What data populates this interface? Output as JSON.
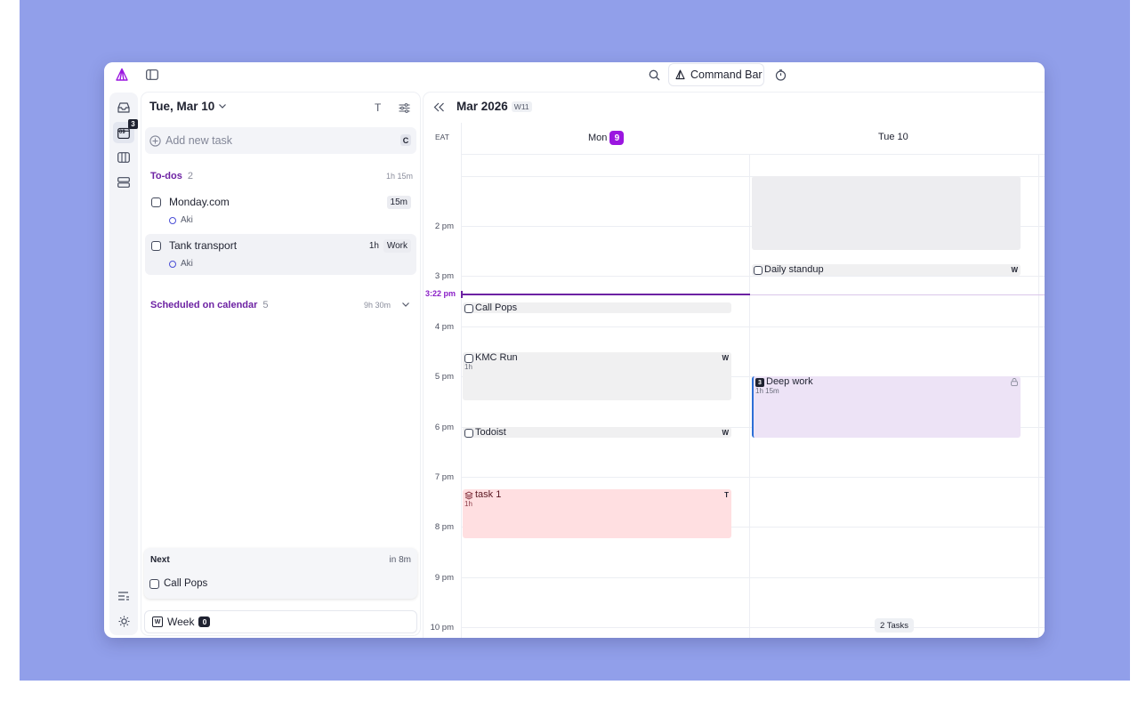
{
  "topbar": {
    "command_bar_label": "Command Bar"
  },
  "rail": {
    "today_badge_count": "3",
    "today_icon_text": "09"
  },
  "panel": {
    "date_label": "Tue, Mar 10",
    "text_toggle": "T",
    "add_task_placeholder": "Add new task",
    "add_task_shortcut": "C",
    "todos": {
      "label": "To-dos",
      "count": "2",
      "duration": "1h 15m",
      "items": [
        {
          "title": "Monday.com",
          "owner": "Aki",
          "duration": "15m",
          "tag": ""
        },
        {
          "title": "Tank transport",
          "owner": "Aki",
          "duration": "1h",
          "tag": "Work"
        }
      ]
    },
    "scheduled": {
      "label": "Scheduled on calendar",
      "count": "5",
      "duration": "9h 30m"
    },
    "next": {
      "label": "Next",
      "time": "in 8m",
      "task": "Call Pops"
    },
    "week": {
      "icon_letter": "W",
      "label": "Week",
      "count": "0"
    }
  },
  "calendar": {
    "title": "Mar 2026",
    "week": "W11",
    "timezone": "EAT",
    "days": [
      {
        "name": "Mon",
        "num": "9"
      },
      {
        "name": "Tue",
        "num": "10"
      }
    ],
    "hours": [
      "2 pm",
      "3 pm",
      "4 pm",
      "5 pm",
      "6 pm",
      "7 pm",
      "8 pm",
      "9 pm",
      "10 pm"
    ],
    "now_label": "3:22 pm",
    "events": {
      "daily_standup": {
        "title": "Daily standup",
        "corner": "W"
      },
      "call_pops": {
        "title": "Call Pops"
      },
      "kmc_run": {
        "title": "KMC Run",
        "sub": "1h",
        "corner": "W"
      },
      "deep_work": {
        "title": "Deep work",
        "sub": "1h 15m",
        "badge": "3"
      },
      "todoist": {
        "title": "Todoist",
        "corner": "W"
      },
      "task1": {
        "title": "task 1",
        "sub": "1h",
        "corner": "T"
      }
    },
    "tasks_pill": "2 Tasks"
  },
  "colors": {
    "background": "#919fea",
    "accent": "#9b16e0",
    "section": "#6d22a3",
    "deep_work_bg": "#ede3f6",
    "task1_bg": "#ffdfe1",
    "event_grey": "#f0f0f1"
  }
}
